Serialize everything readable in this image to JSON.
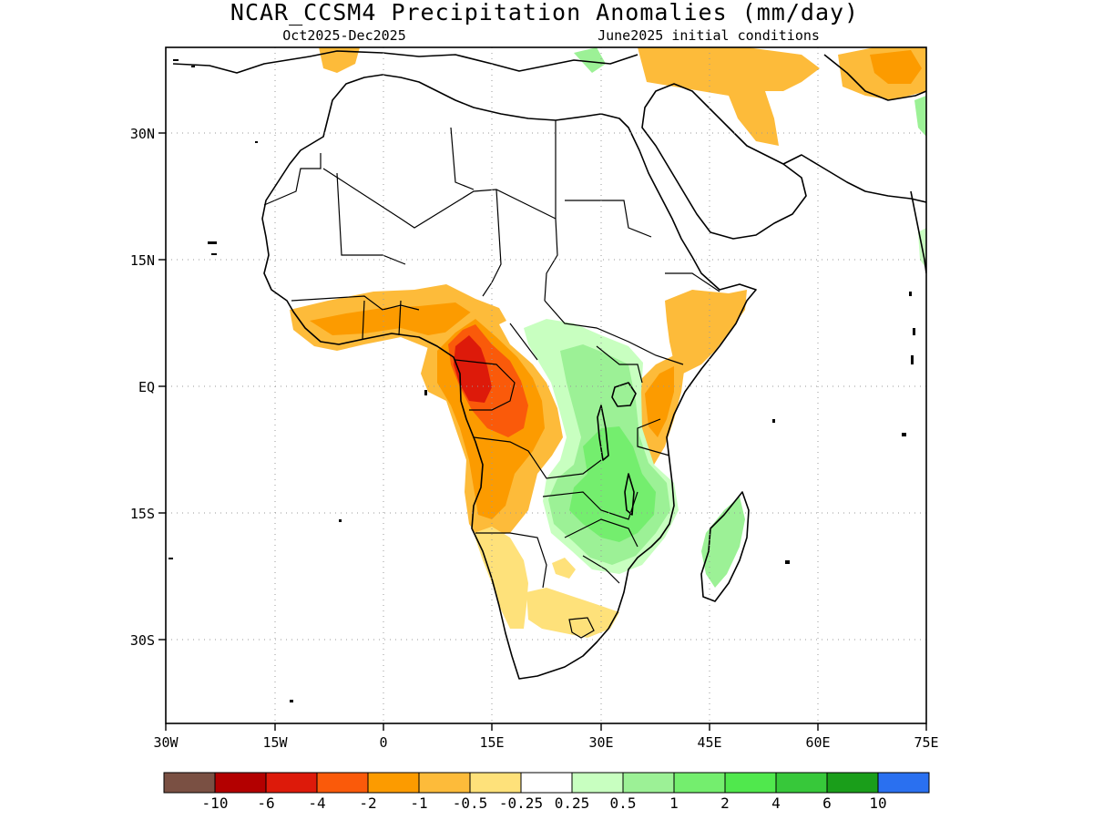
{
  "title": "NCAR_CCSM4 Precipitation Anomalies (mm/day)",
  "subtitle_left": "Oct2025-Dec2025",
  "subtitle_right": "June2025 initial conditions",
  "lat_ticks": [
    "30N",
    "15N",
    "EQ",
    "15S",
    "30S"
  ],
  "lon_ticks": [
    "30W",
    "15W",
    "0",
    "15E",
    "30E",
    "45E",
    "60E",
    "75E"
  ],
  "colorbar": {
    "colors": [
      "#7a5043",
      "#b30000",
      "#dd1a0a",
      "#fa5a0a",
      "#fc9b00",
      "#fdbb3a",
      "#fee17a",
      "#ffffff",
      "#c8ffc0",
      "#9cf196",
      "#74ee6e",
      "#50e84d",
      "#37c83a",
      "#1a9e1a",
      "#2a70f0"
    ],
    "labels": [
      "-10",
      "-6",
      "-4",
      "-2",
      "-1",
      "-0.5",
      "-0.25",
      "0.25",
      "0.5",
      "1",
      "2",
      "4",
      "6",
      "10"
    ]
  },
  "legend_colors": {
    "dry_light": "#fee17a",
    "dry_mid": "#fdbb3a",
    "dry_orange": "#fc9b00",
    "dry_strong": "#fa5a0a",
    "dry_extreme": "#dd1a0a",
    "wet_light": "#c8ffc0",
    "wet_mid": "#9cf196",
    "wet_strong": "#74ee6e"
  }
}
